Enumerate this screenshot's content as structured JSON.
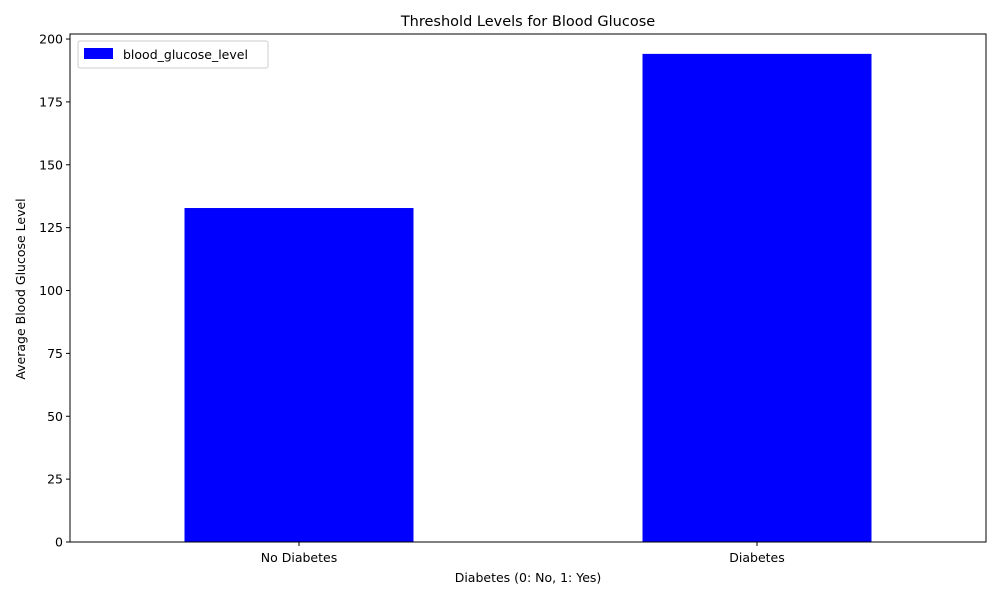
{
  "chart_data": {
    "type": "bar",
    "title": "Threshold Levels for Blood Glucose",
    "xlabel": "Diabetes (0: No, 1: Yes)",
    "ylabel": "Average Blood Glucose Level",
    "categories": [
      "No Diabetes",
      "Diabetes"
    ],
    "series": [
      {
        "name": "blood_glucose_level",
        "values": [
          132.8,
          194.1
        ],
        "color": "#0000ff"
      }
    ],
    "ylim": [
      0,
      202
    ],
    "yticks": [
      0,
      25,
      50,
      75,
      100,
      125,
      150,
      175,
      200
    ],
    "grid": false,
    "legend_position": "top-left"
  }
}
